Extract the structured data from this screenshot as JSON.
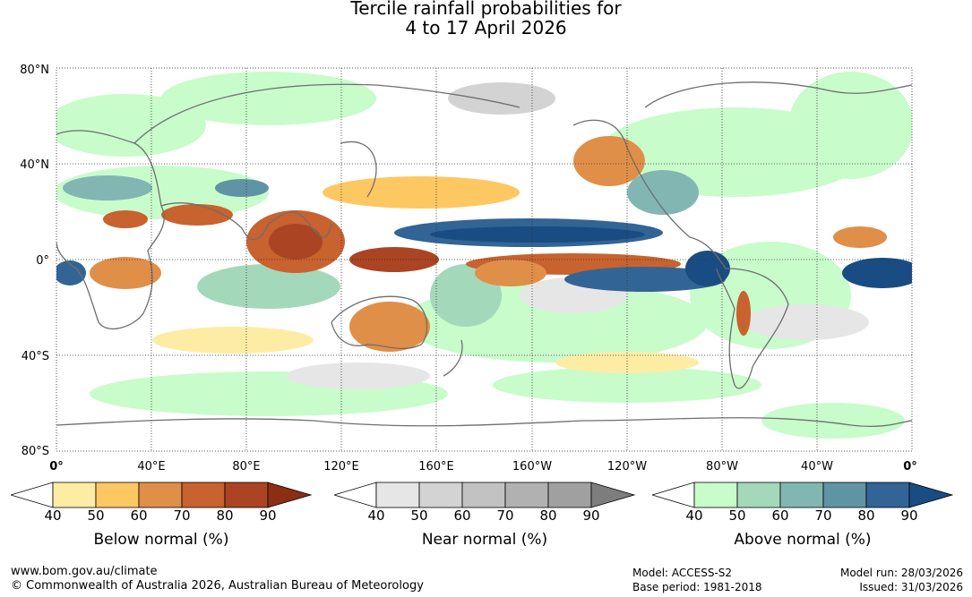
{
  "title_line1": "Tercile rainfall probabilities for",
  "title_line2": "4 to 17 April 2026",
  "map": {
    "lat_ticks": [
      "80°N",
      "40°N",
      "0°",
      "40°S",
      "80°S"
    ],
    "lon_ticks": [
      "0°",
      "40°E",
      "80°E",
      "120°E",
      "160°E",
      "160°W",
      "120°W",
      "80°W",
      "40°W",
      "0°"
    ],
    "gridlines": true
  },
  "legends": [
    {
      "caption": "Below normal (%)",
      "labels": [
        "40",
        "50",
        "60",
        "70",
        "80",
        "90"
      ],
      "colors": [
        "#ffffff",
        "#fdeda4",
        "#fdc862",
        "#e08f48",
        "#c8622f",
        "#ab4422",
        "#8c2e14"
      ]
    },
    {
      "caption": "Near normal (%)",
      "labels": [
        "40",
        "50",
        "60",
        "70",
        "80",
        "90"
      ],
      "colors": [
        "#ffffff",
        "#e6e6e6",
        "#d3d3d3",
        "#c2c2c2",
        "#b1b1b1",
        "#a0a0a0",
        "#7d7d7d"
      ]
    },
    {
      "caption": "Above normal (%)",
      "labels": [
        "40",
        "50",
        "60",
        "70",
        "80",
        "90"
      ],
      "colors": [
        "#ffffff",
        "#c8fccb",
        "#a4d8bb",
        "#82b6b3",
        "#5f94a4",
        "#326496",
        "#194c82"
      ]
    }
  ],
  "footer": {
    "url": "www.bom.gov.au/climate",
    "copyright": "© Commonwealth of Australia 2026, Australian Bureau of Meteorology",
    "model": "Model: ACCESS-S2",
    "base_period": "Base period: 1981-2018",
    "model_run": "Model run: 28/03/2026",
    "issued": "Issued: 31/03/2026"
  }
}
